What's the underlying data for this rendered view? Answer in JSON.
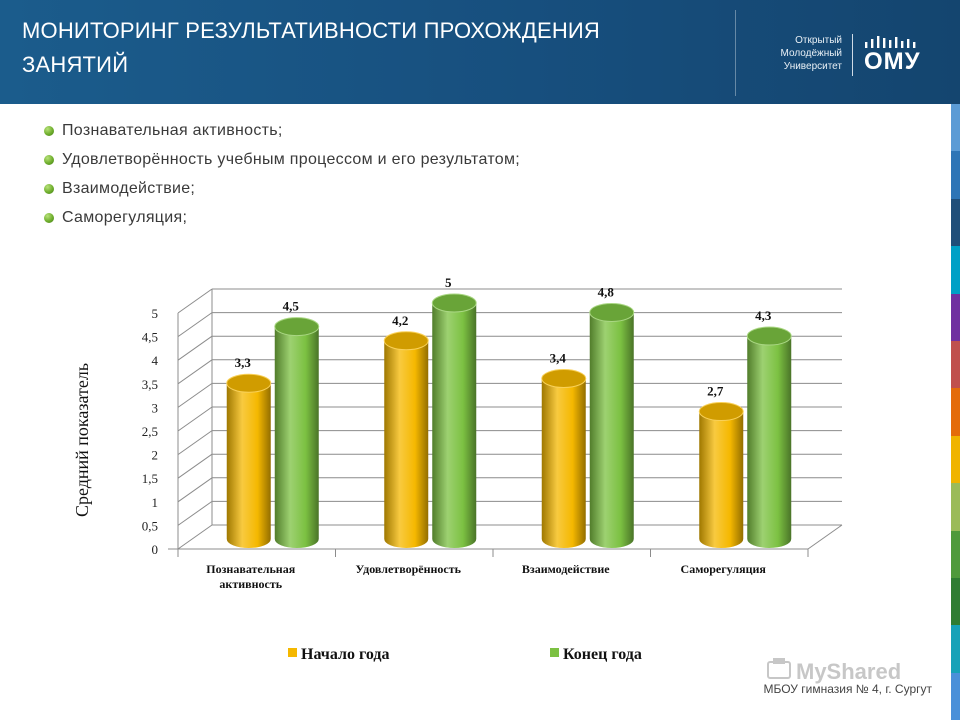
{
  "header": {
    "title": "МОНИТОРИНГ РЕЗУЛЬТАТИВНОСТИ ПРОХОЖДЕНИЯ ЗАНЯТИЙ",
    "logo_lines": [
      "Открытый",
      "Молодёжный",
      "Университет"
    ],
    "logo_abbr": "ОМУ"
  },
  "bullets": [
    "Познавательная активность;",
    "Удовлетворённость учебным процессом и его результатом;",
    "Взаимодействие;",
    "Саморегуляция;"
  ],
  "colors": {
    "header": "#1a5786",
    "series_start": "#f5b800",
    "series_end": "#7cc142",
    "bullet": "#6fae2d",
    "stripe": [
      "#5b9bd5",
      "#2e75b6",
      "#1f4e79",
      "#00a0c6",
      "#7030a0",
      "#c0504d",
      "#e46c0a",
      "#f0b400",
      "#9bbb59",
      "#4f9a3b",
      "#2f7d32",
      "#17a2b8",
      "#4a90d9"
    ]
  },
  "chart_data": {
    "type": "bar",
    "style": "3d-cylinder",
    "categories": [
      "Познавательная активность",
      "Удовлетворённость",
      "Взаимодействие",
      "Саморегуляция"
    ],
    "category_lines": [
      [
        "Познавательная",
        "активность"
      ],
      [
        "Удовлетворённость"
      ],
      [
        "Взаимодействие"
      ],
      [
        "Саморегуляция"
      ]
    ],
    "series": [
      {
        "name": "Начало года",
        "values": [
          3.3,
          4.2,
          3.4,
          2.7
        ],
        "labels": [
          "3,3",
          "4,2",
          "3,4",
          "2,7"
        ]
      },
      {
        "name": "Конец года",
        "values": [
          4.5,
          5,
          4.8,
          4.3
        ],
        "labels": [
          "4,5",
          "5",
          "4,8",
          "4,3"
        ]
      }
    ],
    "ylabel": "Средний показатель",
    "ylim": [
      0,
      5
    ],
    "yticks": [
      "0",
      "0,5",
      "1",
      "1,5",
      "2",
      "2,5",
      "3",
      "3,5",
      "4",
      "4,5",
      "5"
    ],
    "grid": true,
    "legend_position": "bottom"
  },
  "footer": {
    "school": "МБОУ гимназия № 4, г. Сургут",
    "watermark": "MyShared"
  }
}
